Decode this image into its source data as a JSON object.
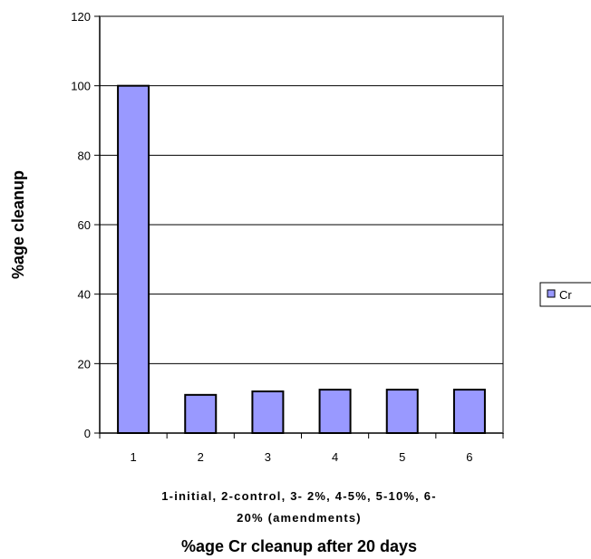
{
  "chart_data": {
    "type": "bar",
    "title": "%age Cr cleanup after 20 days",
    "xlabel_lines": [
      "1-initial, 2-control, 3- 2%, 4-5%, 5-10%, 6-",
      "20% (amendments)"
    ],
    "ylabel": "%age cleanup",
    "categories": [
      "1",
      "2",
      "3",
      "4",
      "5",
      "6"
    ],
    "series": [
      {
        "name": "Cr",
        "values": [
          100,
          11,
          12,
          12.5,
          12.5,
          12.5
        ],
        "color": "#9999ff"
      }
    ],
    "ylim": [
      0,
      120
    ],
    "yticks": [
      0,
      20,
      40,
      60,
      80,
      100,
      120
    ],
    "grid": true,
    "legend_position": "right"
  }
}
